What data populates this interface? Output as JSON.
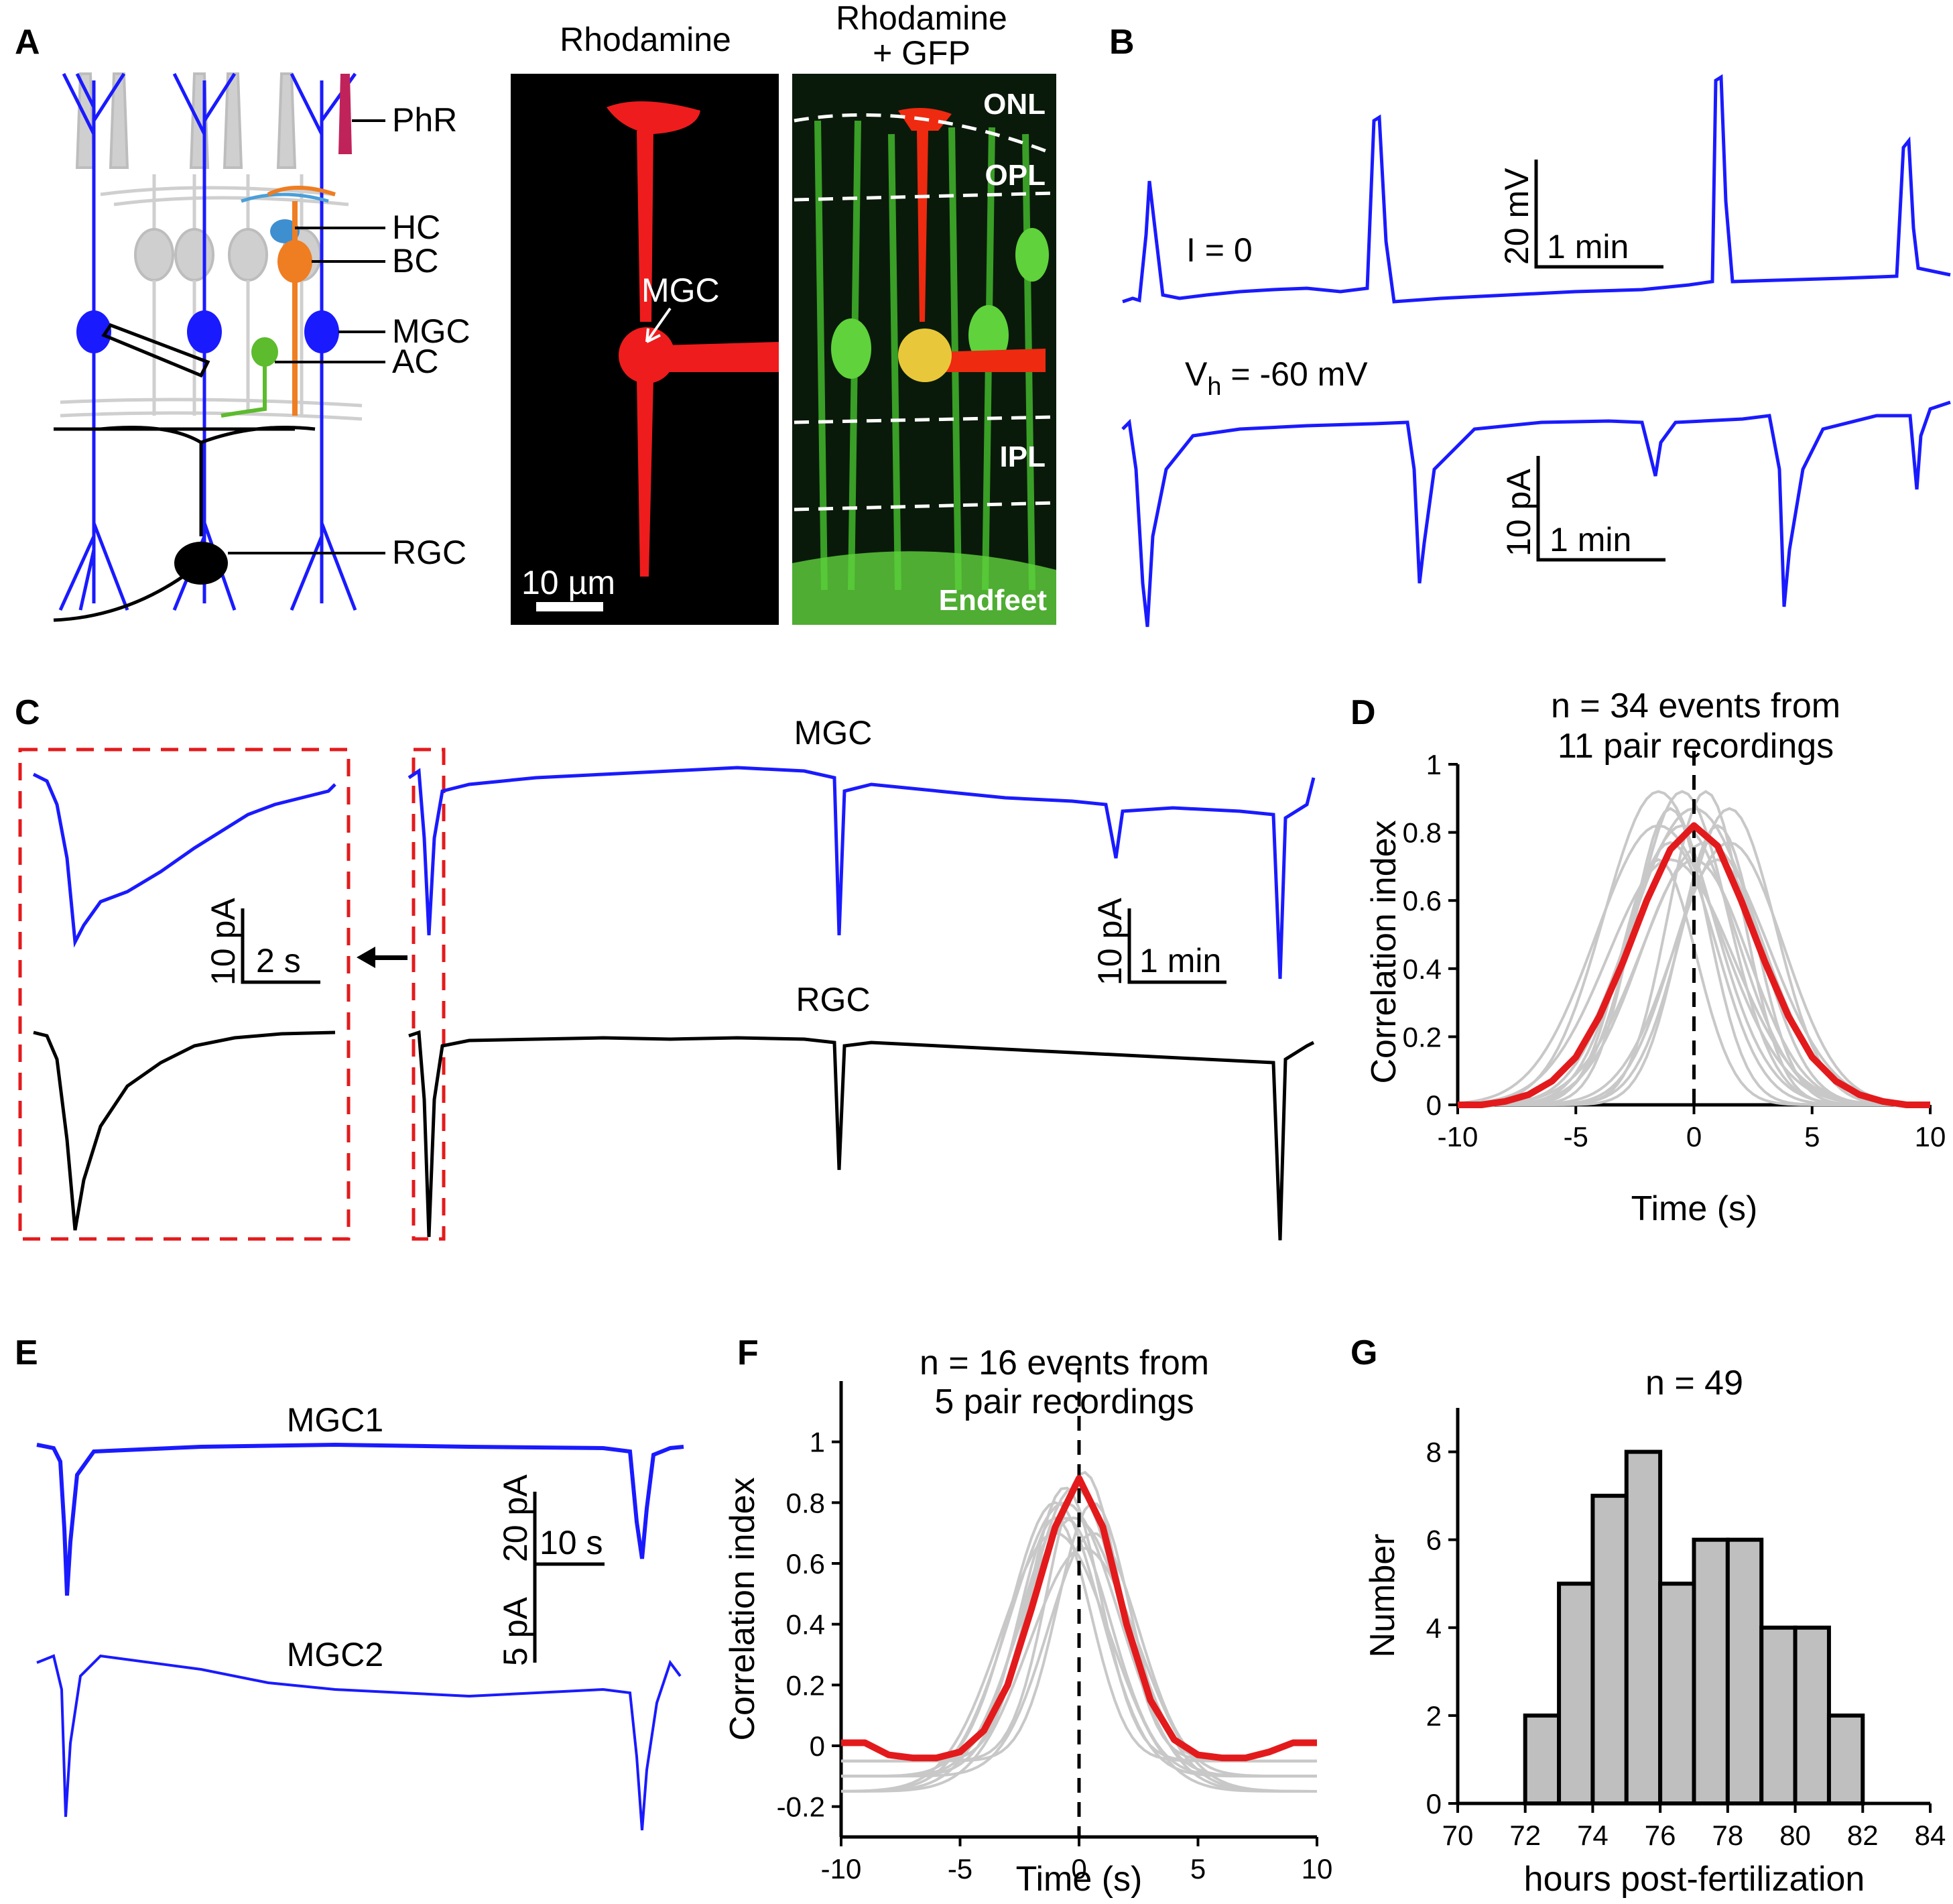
{
  "panel_labels": [
    "A",
    "B",
    "C",
    "D",
    "E",
    "F",
    "G"
  ],
  "panel_a": {
    "schematic_labels": [
      "PhR",
      "HC",
      "BC",
      "MGC",
      "AC",
      "RGC"
    ],
    "image_titles": {
      "left": "Rhodamine",
      "right_line1": "Rhodamine",
      "right_line2": "+ GFP"
    },
    "cell_arrow_label": "MGC",
    "scale_bar": "10 µm",
    "layers": [
      "ONL",
      "OPL",
      "IPL",
      "Endfeet"
    ]
  },
  "panel_b": {
    "current_clamp_label": "I = 0",
    "vh_label_main": "V",
    "vh_label_sub": "h",
    "vh_label_value": " = -60 mV",
    "scale_top": {
      "y": "20 mV",
      "x": "1 min"
    },
    "scale_bottom": {
      "y": "10 pA",
      "x": "1 min"
    }
  },
  "panel_c": {
    "trace_labels": [
      "MGC",
      "RGC"
    ],
    "inset_scale": {
      "y": "10 pA",
      "x": "2 s"
    },
    "main_scale": {
      "y": "10 pA",
      "x": "1 min"
    }
  },
  "panel_e": {
    "trace_labels": [
      "MGC1",
      "MGC2"
    ],
    "scale": {
      "y1": "20 pA",
      "y2": "5 pA",
      "x": "10 s"
    }
  },
  "colors": {
    "mgc_trace": "#1a1aff",
    "rgc_trace": "#000000",
    "mean_curve": "#e31a1c",
    "individual": "#c8c8c8",
    "hist_bar": "#bfbfbf"
  },
  "chart_data": [
    {
      "panel": "D",
      "type": "line",
      "annotation_line1": "n = 34 events from",
      "annotation_line2": "11 pair recordings",
      "xlabel": "Time (s)",
      "ylabel": "Correlation index",
      "xlim": [
        -10,
        10
      ],
      "ylim": [
        0,
        1
      ],
      "x_ticks": [
        "-10",
        "-5",
        "0",
        "5",
        "10"
      ],
      "y_ticks": [
        "0",
        "0.2",
        "0.4",
        "0.6",
        "0.8",
        "1"
      ],
      "x": [
        -10,
        -9,
        -8,
        -7,
        -6,
        -5,
        -4,
        -3,
        -2,
        -1,
        0,
        1,
        2,
        3,
        4,
        5,
        6,
        7,
        8,
        9,
        10
      ],
      "mean": [
        0,
        0,
        0.01,
        0.03,
        0.07,
        0.14,
        0.26,
        0.42,
        0.6,
        0.75,
        0.82,
        0.76,
        0.6,
        0.42,
        0.26,
        0.14,
        0.07,
        0.03,
        0.01,
        0,
        0
      ]
    },
    {
      "panel": "F",
      "type": "line",
      "annotation_line1": "n = 16 events from",
      "annotation_line2": "5 pair recordings",
      "xlabel": "Time (s)",
      "ylabel": "Correlation index",
      "xlim": [
        -10,
        10
      ],
      "ylim": [
        -0.3,
        1.2
      ],
      "x_ticks": [
        "-10",
        "-5",
        "0",
        "5",
        "10"
      ],
      "y_ticks": [
        "-0.2",
        "0",
        "0.2",
        "0.4",
        "0.6",
        "0.8",
        "1"
      ],
      "x": [
        -10,
        -9,
        -8,
        -7,
        -6,
        -5,
        -4,
        -3,
        -2,
        -1,
        0,
        1,
        2,
        3,
        4,
        5,
        6,
        7,
        8,
        9,
        10
      ],
      "mean": [
        0.01,
        0.01,
        -0.03,
        -0.04,
        -0.04,
        -0.02,
        0.05,
        0.2,
        0.45,
        0.72,
        0.88,
        0.72,
        0.4,
        0.15,
        0.02,
        -0.03,
        -0.04,
        -0.04,
        -0.02,
        0.01,
        0.01
      ]
    },
    {
      "panel": "G",
      "type": "bar",
      "annotation": "n = 49",
      "xlabel": "hours post-fertilization",
      "ylabel": "Number",
      "xlim": [
        70,
        84
      ],
      "ylim": [
        0,
        9
      ],
      "x_ticks": [
        "70",
        "72",
        "74",
        "76",
        "78",
        "80",
        "82",
        "84"
      ],
      "y_ticks": [
        "0",
        "2",
        "4",
        "6",
        "8"
      ],
      "bin_edges": [
        72,
        73,
        74,
        75,
        76,
        77,
        78,
        79,
        80,
        81,
        82
      ],
      "values": [
        2,
        5,
        7,
        8,
        5,
        6,
        6,
        4,
        4,
        2
      ]
    }
  ]
}
